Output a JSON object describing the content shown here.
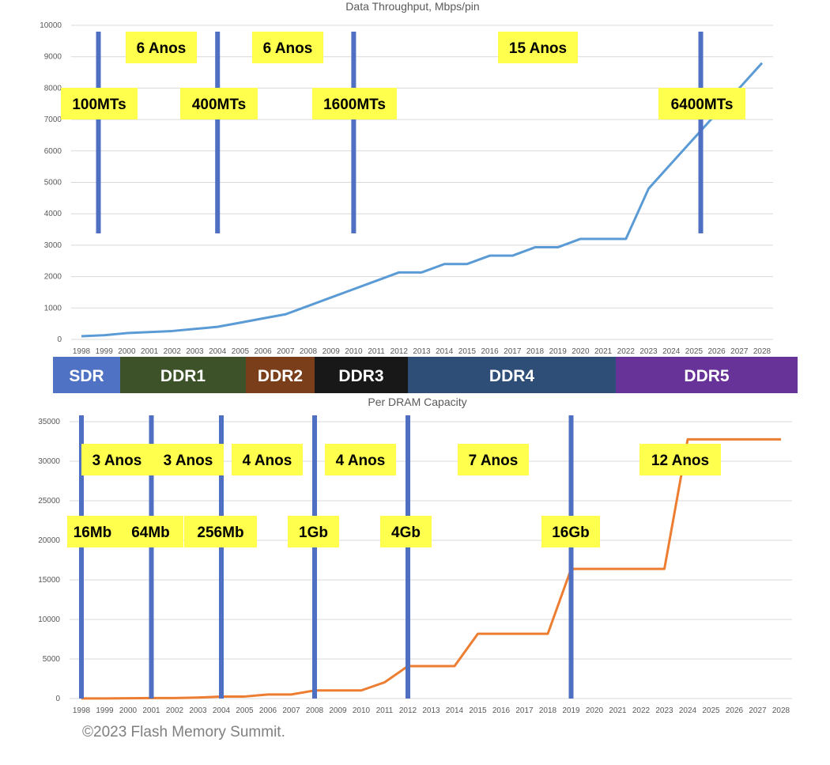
{
  "chart_data": [
    {
      "type": "line",
      "title": "Data Throughput, Mbps/pin",
      "xlabel": "",
      "ylabel": "",
      "x": [
        1998,
        1999,
        2000,
        2001,
        2002,
        2003,
        2004,
        2005,
        2006,
        2007,
        2008,
        2009,
        2010,
        2011,
        2012,
        2013,
        2014,
        2015,
        2016,
        2017,
        2018,
        2019,
        2020,
        2021,
        2022,
        2023,
        2024,
        2025,
        2026,
        2027,
        2028
      ],
      "series": [
        {
          "name": "Data Throughput",
          "color": "#5b9bd5",
          "values": [
            100,
            133,
            200,
            233,
            266,
            333,
            400,
            533,
            667,
            800,
            1066,
            1333,
            1600,
            1866,
            2133,
            2133,
            2400,
            2400,
            2666,
            2666,
            2933,
            2933,
            3200,
            3200,
            3200,
            4800,
            5600,
            6400,
            7200,
            8000,
            8800
          ]
        }
      ],
      "ylim": [
        0,
        10000
      ],
      "yticks": [
        0,
        1000,
        2000,
        3000,
        4000,
        5000,
        6000,
        7000,
        8000,
        9000,
        10000
      ],
      "grid": true,
      "markers": {
        "color": "#4f6fc2",
        "years": [
          1998.75,
          2004,
          2010,
          2025.3
        ]
      },
      "annotations": {
        "intervals": [
          "6  Anos",
          "6  Anos",
          "15  Anos"
        ],
        "speeds": [
          "100MTs",
          "400MTs",
          "1600MTs",
          "6400MTs"
        ]
      }
    },
    {
      "type": "line",
      "title": "Per DRAM Capacity",
      "xlabel": "",
      "ylabel": "",
      "x": [
        1998,
        1999,
        2000,
        2001,
        2002,
        2003,
        2004,
        2005,
        2006,
        2007,
        2008,
        2009,
        2010,
        2011,
        2012,
        2013,
        2014,
        2015,
        2016,
        2017,
        2018,
        2019,
        2020,
        2021,
        2022,
        2023,
        2024,
        2025,
        2026,
        2027,
        2028
      ],
      "series": [
        {
          "name": "Per DRAM Capacity",
          "color": "#ed7d31",
          "values": [
            16,
            16,
            32,
            64,
            64,
            128,
            256,
            256,
            512,
            512,
            1024,
            1024,
            1024,
            2048,
            4096,
            4096,
            4096,
            8192,
            8192,
            8192,
            8192,
            16384,
            16384,
            16384,
            16384,
            16384,
            32768,
            32768,
            32768,
            32768,
            32768
          ]
        }
      ],
      "ylim": [
        0,
        35000
      ],
      "yticks": [
        0,
        5000,
        10000,
        15000,
        20000,
        25000,
        30000,
        35000
      ],
      "grid": true,
      "markers": {
        "color": "#4f6fc2",
        "years": [
          1998,
          2001,
          2004,
          2008,
          2012,
          2019
        ]
      },
      "annotations": {
        "intervals": [
          "3 Anos",
          "3 Anos",
          "4  Anos",
          "4  Anos",
          "7  Anos",
          "12  Anos"
        ],
        "capacities": [
          "16Mb",
          "64Mb",
          "256Mb",
          "1Gb",
          "4Gb",
          "16Gb"
        ]
      }
    }
  ],
  "generations": [
    {
      "label": "SDR",
      "color": "#4f72c4"
    },
    {
      "label": "DDR1",
      "color": "#3d5228"
    },
    {
      "label": "DDR2",
      "color": "#7a3f1a"
    },
    {
      "label": "DDR3",
      "color": "#181818"
    },
    {
      "label": "DDR4",
      "color": "#2e4e78"
    },
    {
      "label": "DDR5",
      "color": "#683399"
    }
  ],
  "footer": {
    "copyright": "©2023 Flash Memory Summit."
  }
}
